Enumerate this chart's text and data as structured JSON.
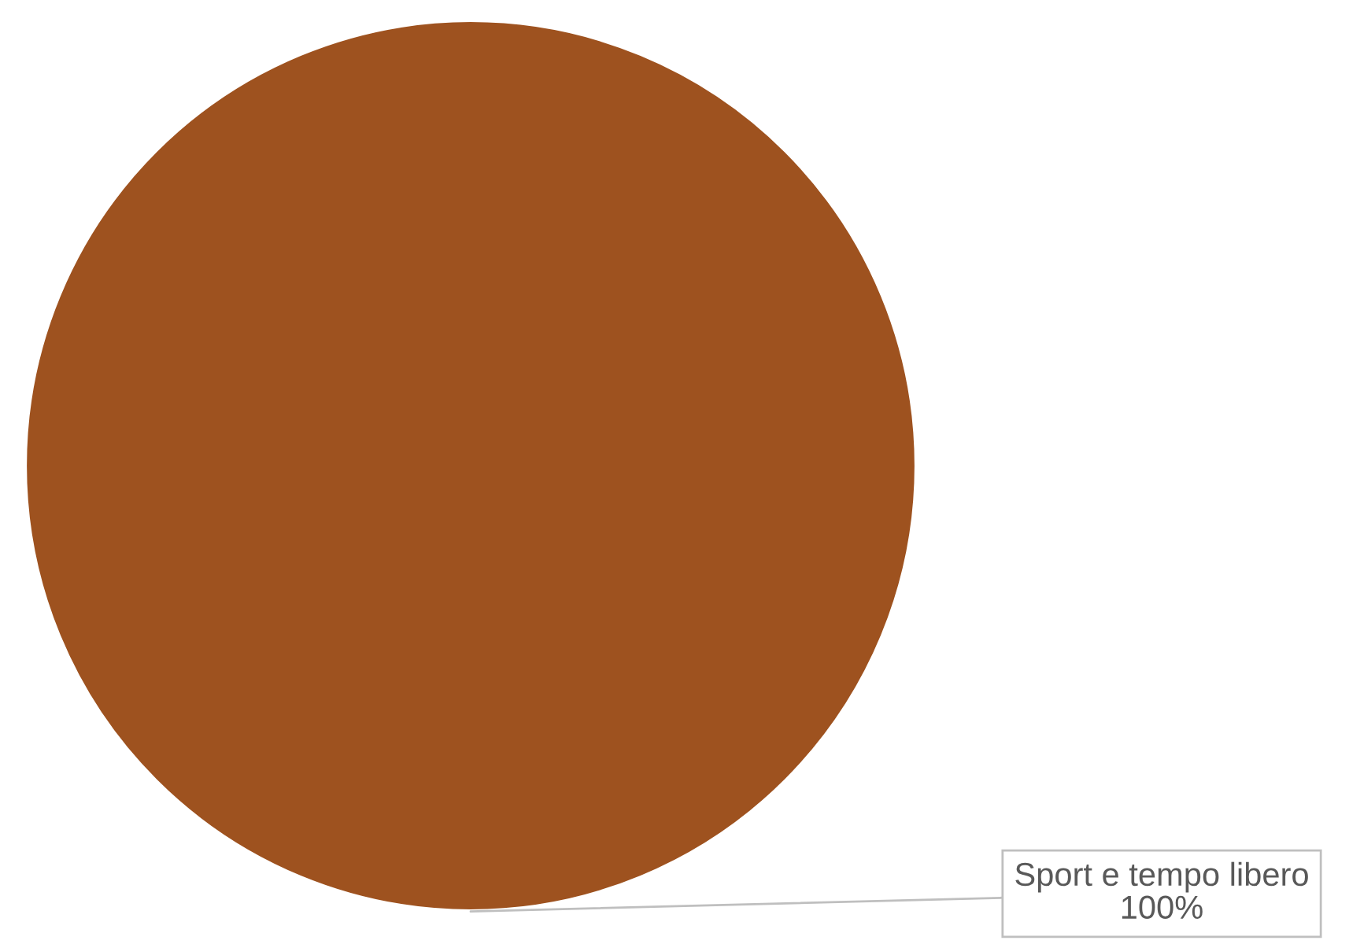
{
  "chart_data": {
    "type": "pie",
    "categories": [
      "Sport e tempo libero"
    ],
    "values": [
      100
    ],
    "colors": [
      "#9e521f"
    ],
    "value_labels": [
      "100%"
    ]
  }
}
